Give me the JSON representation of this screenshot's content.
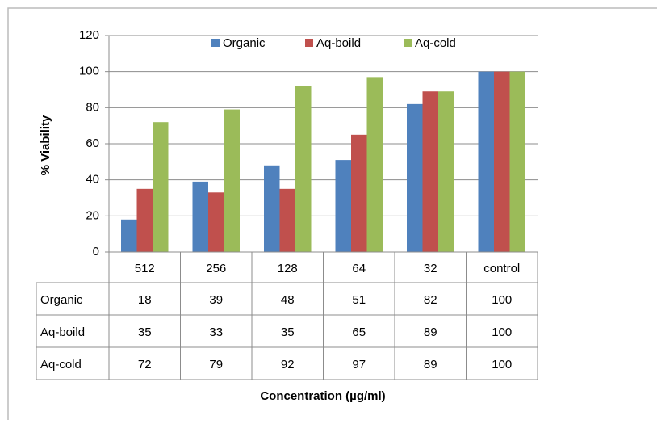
{
  "chart_data": {
    "type": "bar",
    "xlabel": "Concentration (µg/ml)",
    "ylabel": "% Viability",
    "categories": [
      "512",
      "256",
      "128",
      "64",
      "32",
      "control"
    ],
    "series": [
      {
        "name": "Organic",
        "color": "#4f81bd",
        "values": [
          18,
          39,
          48,
          51,
          82,
          100
        ]
      },
      {
        "name": "Aq-boild",
        "color": "#c0504d",
        "values": [
          35,
          33,
          35,
          65,
          89,
          100
        ]
      },
      {
        "name": "Aq-cold",
        "color": "#9bbb59",
        "values": [
          72,
          79,
          92,
          97,
          89,
          100
        ]
      }
    ],
    "ylim": [
      0,
      120
    ],
    "yticks": [
      0,
      20,
      40,
      60,
      80,
      100,
      120
    ],
    "grid": true,
    "legend": "top",
    "data_table": true
  }
}
